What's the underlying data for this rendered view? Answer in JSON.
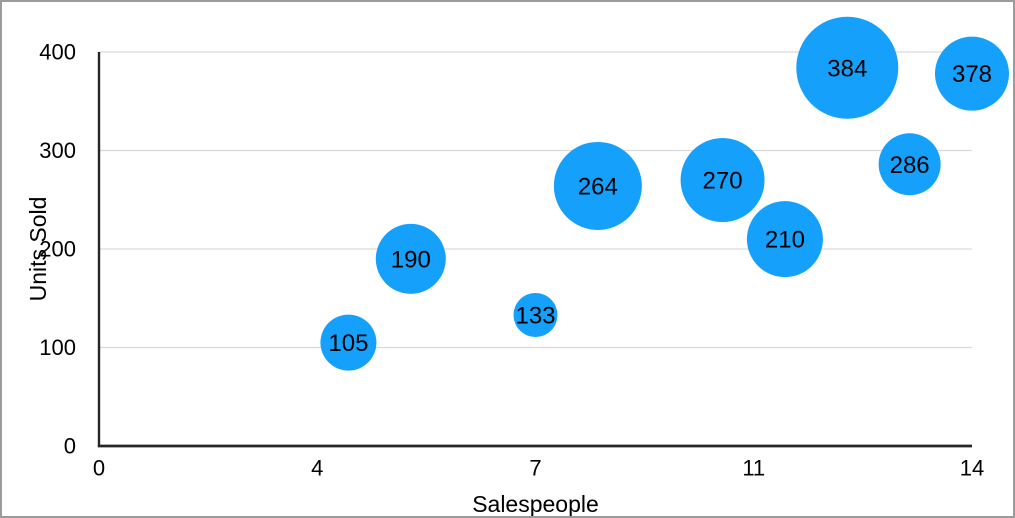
{
  "figure": {
    "background": "#ffffff",
    "border_color": "#9b9b9b"
  },
  "chart_data": {
    "type": "scatter",
    "subtype": "bubble",
    "title": "",
    "xlabel": "Salespeople",
    "ylabel": "Units Sold",
    "xlim": [
      0,
      14
    ],
    "ylim": [
      0,
      400
    ],
    "grid": "horizontal",
    "legend": "none",
    "colors": {
      "bubble_fill": "#14A0FB",
      "gridline": "#d9d9d9",
      "axis_line": "#262626",
      "text": "#000000"
    },
    "x_ticks": [
      {
        "value": 0,
        "label": "0"
      },
      {
        "value": 3.5,
        "label": "4"
      },
      {
        "value": 7,
        "label": "7"
      },
      {
        "value": 10.5,
        "label": "11"
      },
      {
        "value": 14,
        "label": "14"
      }
    ],
    "y_ticks": [
      {
        "value": 0,
        "label": "0"
      },
      {
        "value": 100,
        "label": "100"
      },
      {
        "value": 200,
        "label": "200"
      },
      {
        "value": 300,
        "label": "300"
      },
      {
        "value": 400,
        "label": "400"
      }
    ],
    "series": [
      {
        "name": "bubbles",
        "points": [
          {
            "x": 4,
            "y": 105,
            "label": "105",
            "radius_px": 28
          },
          {
            "x": 5,
            "y": 190,
            "label": "190",
            "radius_px": 35
          },
          {
            "x": 7,
            "y": 133,
            "label": "133",
            "radius_px": 22
          },
          {
            "x": 8,
            "y": 264,
            "label": "264",
            "radius_px": 44
          },
          {
            "x": 10,
            "y": 270,
            "label": "270",
            "radius_px": 42
          },
          {
            "x": 11,
            "y": 210,
            "label": "210",
            "radius_px": 38
          },
          {
            "x": 12,
            "y": 384,
            "label": "384",
            "radius_px": 51
          },
          {
            "x": 13,
            "y": 286,
            "label": "286",
            "radius_px": 31
          },
          {
            "x": 14,
            "y": 378,
            "label": "378",
            "radius_px": 37
          }
        ]
      }
    ]
  }
}
